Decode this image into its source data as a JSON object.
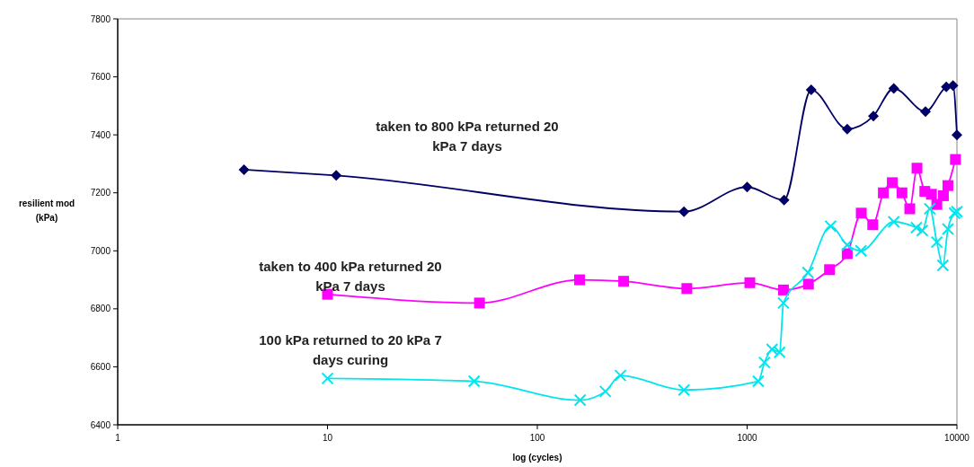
{
  "chart_data": {
    "type": "line",
    "xlabel": "log (cycles)",
    "ylabel": "resilient mod (kPa)",
    "log": "x",
    "xlim": [
      1,
      10000
    ],
    "xticks": [
      1,
      10,
      100,
      1000,
      10000
    ],
    "ylim": [
      6400,
      7800
    ],
    "yticks": [
      6400,
      6600,
      6800,
      7000,
      7200,
      7400,
      7600,
      7800
    ],
    "grid": false,
    "legend": false,
    "series": [
      {
        "name": "taken to 800 kPa returned 20 kPa 7 days",
        "color": "#000066",
        "marker": "diamond",
        "x": [
          4,
          11,
          500,
          1000,
          1500,
          2020,
          3000,
          4000,
          5000,
          7080,
          8900,
          9580,
          10000
        ],
        "values": [
          7280,
          7260,
          7135,
          7220,
          7175,
          7555,
          7420,
          7465,
          7560,
          7480,
          7565,
          7570,
          7400
        ]
      },
      {
        "name": "taken to 400 kPa returned 20 kPa 7 days",
        "color": "#ff00ff",
        "marker": "square",
        "x": [
          10,
          53,
          159,
          258,
          516,
          1030,
          1490,
          1960,
          2470,
          3000,
          3500,
          3970,
          4460,
          4920,
          5470,
          5960,
          6450,
          7030,
          7560,
          8020,
          8620,
          9060,
          9840
        ],
        "values": [
          6850,
          6820,
          6900,
          6895,
          6870,
          6890,
          6865,
          6885,
          6935,
          6990,
          7130,
          7090,
          7200,
          7235,
          7200,
          7145,
          7285,
          7205,
          7195,
          7160,
          7190,
          7225,
          7315
        ]
      },
      {
        "name": "100 kPa returned to 20 kPa 7 days curing",
        "color": "#00e5ee",
        "marker": "cross",
        "x": [
          10,
          50,
          160,
          211,
          249,
          500,
          1130,
          1210,
          1315,
          1430,
          1490,
          1950,
          2500,
          3000,
          3490,
          5000,
          6410,
          6840,
          7430,
          8020,
          8570,
          9060,
          9740,
          10000
        ],
        "values": [
          6560,
          6550,
          6485,
          6515,
          6570,
          6520,
          6550,
          6615,
          6660,
          6650,
          6820,
          6925,
          7085,
          7020,
          7000,
          7100,
          7080,
          7070,
          7145,
          7030,
          6950,
          7075,
          7130,
          7135
        ]
      }
    ]
  }
}
